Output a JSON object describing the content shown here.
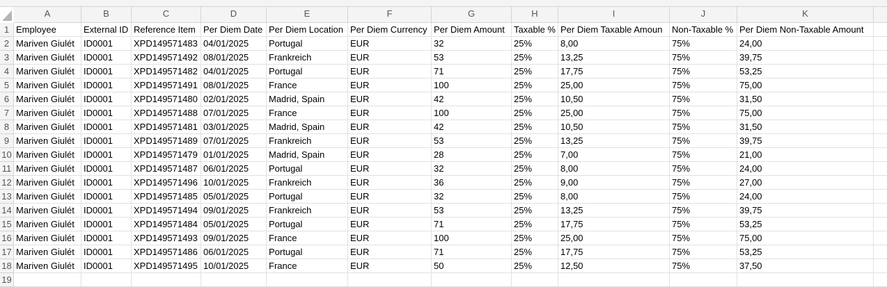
{
  "column_letters": [
    "A",
    "B",
    "C",
    "D",
    "E",
    "F",
    "G",
    "H",
    "I",
    "J",
    "K"
  ],
  "row_numbers": [
    1,
    2,
    3,
    4,
    5,
    6,
    7,
    8,
    9,
    10,
    11,
    12,
    13,
    14,
    15,
    16,
    17,
    18,
    19
  ],
  "rows": [
    [
      "Employee",
      "External ID",
      "Reference Item",
      "Per Diem Date",
      "Per Diem Location",
      "Per Diem Currency",
      "Per Diem Amount",
      "Taxable %",
      "Per Diem Taxable Amoun",
      "Non-Taxable %",
      "Per Diem Non-Taxable Amount"
    ],
    [
      "Mariven Giulét",
      "ID0001",
      "XPD149571483",
      "04/01/2025",
      "Portugal",
      "EUR",
      "32",
      "25%",
      "8,00",
      "75%",
      "24,00"
    ],
    [
      "Mariven Giulét",
      "ID0001",
      "XPD149571492",
      "08/01/2025",
      "Frankreich",
      "EUR",
      "53",
      "25%",
      "13,25",
      "75%",
      "39,75"
    ],
    [
      "Mariven Giulét",
      "ID0001",
      "XPD149571482",
      "04/01/2025",
      "Portugal",
      "EUR",
      "71",
      "25%",
      "17,75",
      "75%",
      "53,25"
    ],
    [
      "Mariven Giulét",
      "ID0001",
      "XPD149571491",
      "08/01/2025",
      "France",
      "EUR",
      "100",
      "25%",
      "25,00",
      "75%",
      "75,00"
    ],
    [
      "Mariven Giulét",
      "ID0001",
      "XPD149571480",
      "02/01/2025",
      "Madrid, Spain",
      "EUR",
      "42",
      "25%",
      "10,50",
      "75%",
      "31,50"
    ],
    [
      "Mariven Giulét",
      "ID0001",
      "XPD149571488",
      "07/01/2025",
      "France",
      "EUR",
      "100",
      "25%",
      "25,00",
      "75%",
      "75,00"
    ],
    [
      "Mariven Giulét",
      "ID0001",
      "XPD149571481",
      "03/01/2025",
      "Madrid, Spain",
      "EUR",
      "42",
      "25%",
      "10,50",
      "75%",
      "31,50"
    ],
    [
      "Mariven Giulét",
      "ID0001",
      "XPD149571489",
      "07/01/2025",
      "Frankreich",
      "EUR",
      "53",
      "25%",
      "13,25",
      "75%",
      "39,75"
    ],
    [
      "Mariven Giulét",
      "ID0001",
      "XPD149571479",
      "01/01/2025",
      "Madrid, Spain",
      "EUR",
      "28",
      "25%",
      "7,00",
      "75%",
      "21,00"
    ],
    [
      "Mariven Giulét",
      "ID0001",
      "XPD149571487",
      "06/01/2025",
      "Portugal",
      "EUR",
      "32",
      "25%",
      "8,00",
      "75%",
      "24,00"
    ],
    [
      "Mariven Giulét",
      "ID0001",
      "XPD149571496",
      "10/01/2025",
      "Frankreich",
      "EUR",
      "36",
      "25%",
      "9,00",
      "75%",
      "27,00"
    ],
    [
      "Mariven Giulét",
      "ID0001",
      "XPD149571485",
      "05/01/2025",
      "Portugal",
      "EUR",
      "32",
      "25%",
      "8,00",
      "75%",
      "24,00"
    ],
    [
      "Mariven Giulét",
      "ID0001",
      "XPD149571494",
      "09/01/2025",
      "Frankreich",
      "EUR",
      "53",
      "25%",
      "13,25",
      "75%",
      "39,75"
    ],
    [
      "Mariven Giulét",
      "ID0001",
      "XPD149571484",
      "05/01/2025",
      "Portugal",
      "EUR",
      "71",
      "25%",
      "17,75",
      "75%",
      "53,25"
    ],
    [
      "Mariven Giulét",
      "ID0001",
      "XPD149571493",
      "09/01/2025",
      "France",
      "EUR",
      "100",
      "25%",
      "25,00",
      "75%",
      "75,00"
    ],
    [
      "Mariven Giulét",
      "ID0001",
      "XPD149571486",
      "06/01/2025",
      "Portugal",
      "EUR",
      "71",
      "25%",
      "17,75",
      "75%",
      "53,25"
    ],
    [
      "Mariven Giulét",
      "ID0001",
      "XPD149571495",
      "10/01/2025",
      "France",
      "EUR",
      "50",
      "25%",
      "12,50",
      "75%",
      "37,50"
    ]
  ]
}
